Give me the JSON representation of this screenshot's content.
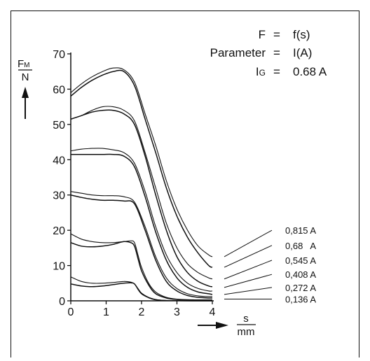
{
  "chart_data": {
    "type": "line",
    "annotation": {
      "line1_lhs": "F",
      "line1_eq": "=",
      "line1_rhs": "f(s)",
      "line2_lhs": "Parameter",
      "line2_eq": "=",
      "line2_rhs": "I(A)",
      "line3_lhs_main": "I",
      "line3_lhs_sub": "G",
      "line3_eq": "=",
      "line3_rhs": "0.68 A"
    },
    "ylabel": {
      "numerator_main": "F",
      "numerator_sub": "M",
      "denominator": "N"
    },
    "xlabel": {
      "numerator": "s",
      "denominator": "mm"
    },
    "xlim": [
      0,
      4
    ],
    "ylim": [
      0,
      70
    ],
    "x_ticks": [
      "0",
      "1",
      "2",
      "3",
      "4"
    ],
    "y_ticks": [
      "0",
      "10",
      "20",
      "30",
      "40",
      "50",
      "60",
      "70"
    ],
    "legend_labels": [
      "0,815 A",
      "0,68   A",
      "0,545 A",
      "0,408 A",
      "0,272 A",
      "0,136 A"
    ],
    "series": [
      {
        "name": "0,815 A",
        "curves": [
          {
            "x": [
              0,
              0.3,
              0.6,
              0.9,
              1.2,
              1.5,
              1.8,
              2.1,
              2.4,
              2.7,
              3.0,
              3.3,
              3.6,
              3.9,
              4.0
            ],
            "y": [
              59,
              61.5,
              63.5,
              65,
              66,
              65.5,
              62,
              53,
              44,
              34,
              26,
              20,
              15.5,
              13,
              12.5
            ]
          },
          {
            "x": [
              0,
              0.3,
              0.6,
              0.9,
              1.2,
              1.5,
              1.8,
              2.1,
              2.4,
              2.7,
              3.0,
              3.3,
              3.6,
              3.9,
              4.0
            ],
            "y": [
              58,
              60.5,
              62.5,
              64,
              65,
              65,
              61,
              51.5,
              42,
              32,
              24,
              18,
              13.5,
              10,
              9.5
            ]
          }
        ]
      },
      {
        "name": "0,68   A",
        "curves": [
          {
            "x": [
              0,
              0.3,
              0.6,
              0.9,
              1.2,
              1.5,
              1.8,
              2.1,
              2.4,
              2.7,
              3.0,
              3.3,
              3.6,
              3.9,
              4.0
            ],
            "y": [
              51.5,
              52.5,
              54,
              55,
              55,
              54,
              51,
              42,
              32,
              22,
              15,
              10.5,
              8,
              6.5,
              6.2
            ]
          },
          {
            "x": [
              0,
              0.3,
              0.6,
              0.9,
              1.2,
              1.5,
              1.8,
              2.1,
              2.4,
              2.7,
              3.0,
              3.3,
              3.6,
              3.9,
              4.0
            ],
            "y": [
              51.5,
              52.5,
              53.5,
              54,
              54,
              53,
              50,
              41,
              30,
              20,
              12.5,
              8,
              5.5,
              4.2,
              4
            ]
          }
        ]
      },
      {
        "name": "0,545 A",
        "curves": [
          {
            "x": [
              0,
              0.3,
              0.6,
              0.9,
              1.2,
              1.5,
              1.8,
              2.1,
              2.4,
              2.7,
              3.0,
              3.3,
              3.6,
              3.9,
              4.0
            ],
            "y": [
              42.5,
              43,
              43.2,
              43.2,
              42.8,
              42,
              39,
              31,
              21,
              13,
              8,
              5,
              3.5,
              2.8,
              2.8
            ]
          },
          {
            "x": [
              0,
              0.3,
              0.6,
              0.9,
              1.2,
              1.5,
              1.8,
              2.1,
              2.4,
              2.7,
              3.0,
              3.3,
              3.6,
              3.9,
              4.0
            ],
            "y": [
              41.5,
              41.5,
              41.5,
              41.5,
              41.5,
              41,
              38,
              29.5,
              19.5,
              11.5,
              6.5,
              3.8,
              2.5,
              2,
              1.8
            ]
          }
        ]
      },
      {
        "name": "0,408 A",
        "curves": [
          {
            "x": [
              0,
              0.3,
              0.6,
              0.9,
              1.2,
              1.5,
              1.8,
              2.1,
              2.4,
              2.7,
              3.0,
              3.3,
              3.6,
              3.9,
              4.0
            ],
            "y": [
              31,
              30.5,
              30,
              29.8,
              29.8,
              29.5,
              28,
              21,
              12.5,
              6.5,
              3.5,
              2,
              1.4,
              1.2,
              1.2
            ]
          },
          {
            "x": [
              0,
              0.3,
              0.6,
              0.9,
              1.2,
              1.5,
              1.8,
              2.1,
              2.4,
              2.7,
              3.0,
              3.3,
              3.6,
              3.9,
              4.0
            ],
            "y": [
              30,
              29.3,
              28.8,
              28.5,
              28.5,
              28.3,
              27.5,
              20,
              11.5,
              5.5,
              2.8,
              1.5,
              1,
              0.8,
              0.8
            ]
          }
        ]
      },
      {
        "name": "0,272 A",
        "curves": [
          {
            "x": [
              0,
              0.3,
              0.6,
              0.9,
              1.2,
              1.5,
              1.7,
              1.8,
              1.9,
              2.0,
              2.2,
              2.4,
              2.7,
              3.0,
              3.5,
              4.0
            ],
            "y": [
              19,
              17.5,
              16.8,
              16.5,
              16.5,
              16.8,
              17,
              16.5,
              13,
              9.5,
              5,
              2.5,
              1,
              0.5,
              0.3,
              0.3
            ]
          },
          {
            "x": [
              0,
              0.3,
              0.6,
              0.9,
              1.2,
              1.5,
              1.7,
              1.8,
              1.9,
              2.0,
              2.2,
              2.4,
              2.7,
              3.0,
              3.5,
              4.0
            ],
            "y": [
              16.5,
              15.5,
              15.3,
              15.5,
              16,
              16.8,
              16.5,
              15.5,
              12,
              8.5,
              4.5,
              2,
              0.8,
              0.4,
              0.2,
              0.2
            ]
          }
        ]
      },
      {
        "name": "0,136 A",
        "curves": [
          {
            "x": [
              0,
              0.3,
              0.6,
              0.9,
              1.2,
              1.5,
              1.7,
              1.8,
              1.9,
              2.0,
              2.2,
              2.4,
              2.7,
              3.0,
              3.5,
              4.0
            ],
            "y": [
              6.8,
              5.5,
              5,
              5,
              5.2,
              5.5,
              5.3,
              4.8,
              3.5,
              2.2,
              1,
              0.4,
              0.1,
              0.05,
              0,
              0
            ]
          },
          {
            "x": [
              0,
              0.3,
              0.6,
              0.9,
              1.2,
              1.5,
              1.7,
              1.8,
              1.9,
              2.0,
              2.2,
              2.4,
              2.7,
              3.0,
              3.5,
              4.0
            ],
            "y": [
              4.8,
              4.2,
              4,
              4.2,
              4.6,
              5,
              5.1,
              4.8,
              3.3,
              2,
              0.9,
              0.3,
              0.1,
              0.05,
              0,
              0
            ]
          }
        ]
      }
    ],
    "legend_anchor_y": [
      12.5,
      9.5,
      6.2,
      3.8,
      1.8,
      0.5
    ],
    "legend_end_y": [
      20,
      15.7,
      11.5,
      7.5,
      3.8,
      0.5
    ],
    "grid": false,
    "legend_placement": "right"
  }
}
